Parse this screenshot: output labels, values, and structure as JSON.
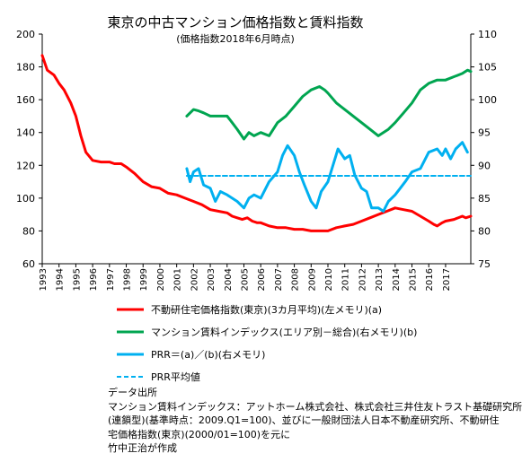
{
  "chart_data": {
    "type": "line",
    "title": "東京の中古マンション価格指数と賃料指数",
    "subtitle": "(価格指数2018年6月時点)",
    "xlabel": "",
    "ylabel_left": "",
    "ylabel_right": "",
    "x_tick_labels": [
      "1993",
      "1994",
      "1995",
      "1996",
      "1997",
      "1998",
      "1999",
      "2000",
      "2001",
      "2002",
      "2003",
      "2004",
      "2005",
      "2006",
      "2007",
      "2008",
      "2009",
      "2010",
      "2011",
      "2012",
      "2013",
      "2014",
      "2015",
      "2016",
      "2017"
    ],
    "ylim_left": [
      60,
      200
    ],
    "yticks_left": [
      60,
      80,
      100,
      120,
      140,
      160,
      180,
      200
    ],
    "ylim_right": [
      75,
      110
    ],
    "yticks_right": [
      75,
      80,
      85,
      90,
      95,
      100,
      105,
      110
    ],
    "xlim": [
      1993,
      2018.5
    ],
    "grid": false,
    "legend_position": "bottom",
    "series": [
      {
        "name": "不動研住宅価格指数(東京)(3カ月平均)(左メモリ)(a)",
        "axis": "left",
        "color": "#ff0000",
        "points": [
          [
            1993.0,
            187
          ],
          [
            1993.3,
            178
          ],
          [
            1993.7,
            175
          ],
          [
            1994.0,
            170
          ],
          [
            1994.3,
            166
          ],
          [
            1994.7,
            158
          ],
          [
            1995.0,
            150
          ],
          [
            1995.3,
            138
          ],
          [
            1995.6,
            128
          ],
          [
            1996.0,
            123
          ],
          [
            1996.5,
            122
          ],
          [
            1997.0,
            122
          ],
          [
            1997.3,
            121
          ],
          [
            1997.7,
            121
          ],
          [
            1998.0,
            119
          ],
          [
            1998.5,
            115
          ],
          [
            1999.0,
            110
          ],
          [
            1999.5,
            107
          ],
          [
            2000.0,
            106
          ],
          [
            2000.5,
            103
          ],
          [
            2001.0,
            102
          ],
          [
            2001.5,
            100
          ],
          [
            2002.0,
            98
          ],
          [
            2002.5,
            96
          ],
          [
            2003.0,
            93
          ],
          [
            2003.5,
            92
          ],
          [
            2004.0,
            91
          ],
          [
            2004.3,
            89
          ],
          [
            2004.6,
            88
          ],
          [
            2004.9,
            87
          ],
          [
            2005.2,
            88
          ],
          [
            2005.5,
            86
          ],
          [
            2005.8,
            85
          ],
          [
            2006.0,
            85
          ],
          [
            2006.5,
            83
          ],
          [
            2007.0,
            82
          ],
          [
            2007.5,
            82
          ],
          [
            2008.0,
            81
          ],
          [
            2008.5,
            81
          ],
          [
            2009.0,
            80
          ],
          [
            2009.5,
            80
          ],
          [
            2010.0,
            80
          ],
          [
            2010.5,
            82
          ],
          [
            2011.0,
            83
          ],
          [
            2011.5,
            84
          ],
          [
            2012.0,
            86
          ],
          [
            2012.5,
            88
          ],
          [
            2013.0,
            90
          ],
          [
            2013.5,
            92
          ],
          [
            2014.0,
            94
          ],
          [
            2014.5,
            93
          ],
          [
            2015.0,
            92
          ],
          [
            2015.5,
            89
          ],
          [
            2016.0,
            86
          ],
          [
            2016.3,
            84
          ],
          [
            2016.5,
            83
          ],
          [
            2016.8,
            85
          ],
          [
            2017.0,
            86
          ],
          [
            2017.5,
            87
          ],
          [
            2018.0,
            89
          ],
          [
            2018.2,
            88
          ],
          [
            2018.5,
            89
          ]
        ]
      },
      {
        "name": "マンション賃料インデックス(エリア別－総合)(右メモリ)(b)",
        "axis": "right",
        "color": "#00a550",
        "points": [
          [
            2001.6,
            97.5
          ],
          [
            2002.0,
            98.5
          ],
          [
            2002.3,
            98.3
          ],
          [
            2002.6,
            98.0
          ],
          [
            2003.0,
            97.5
          ],
          [
            2003.5,
            97.5
          ],
          [
            2004.0,
            97.5
          ],
          [
            2004.3,
            96.5
          ],
          [
            2004.6,
            95.5
          ],
          [
            2005.0,
            94.0
          ],
          [
            2005.3,
            95.0
          ],
          [
            2005.6,
            94.5
          ],
          [
            2006.0,
            95.0
          ],
          [
            2006.5,
            94.5
          ],
          [
            2007.0,
            96.5
          ],
          [
            2007.5,
            97.5
          ],
          [
            2008.0,
            99.0
          ],
          [
            2008.5,
            100.5
          ],
          [
            2009.0,
            101.5
          ],
          [
            2009.5,
            102.0
          ],
          [
            2009.8,
            101.5
          ],
          [
            2010.0,
            101.0
          ],
          [
            2010.5,
            99.5
          ],
          [
            2011.0,
            98.5
          ],
          [
            2011.5,
            97.5
          ],
          [
            2012.0,
            96.5
          ],
          [
            2012.5,
            95.5
          ],
          [
            2013.0,
            94.5
          ],
          [
            2013.3,
            95.0
          ],
          [
            2013.6,
            95.5
          ],
          [
            2014.0,
            96.5
          ],
          [
            2014.5,
            98.0
          ],
          [
            2015.0,
            99.5
          ],
          [
            2015.5,
            101.5
          ],
          [
            2016.0,
            102.5
          ],
          [
            2016.5,
            103.0
          ],
          [
            2017.0,
            103.0
          ],
          [
            2017.5,
            103.5
          ],
          [
            2018.0,
            104.0
          ],
          [
            2018.3,
            104.5
          ],
          [
            2018.5,
            104.3
          ]
        ]
      },
      {
        "name": "PRR＝(a)／(b)(右メモリ)",
        "axis": "right",
        "color": "#00b0f0",
        "points": [
          [
            2001.6,
            89.5
          ],
          [
            2001.8,
            87.5
          ],
          [
            2002.0,
            89.0
          ],
          [
            2002.3,
            89.5
          ],
          [
            2002.6,
            87.0
          ],
          [
            2003.0,
            86.5
          ],
          [
            2003.3,
            84.5
          ],
          [
            2003.6,
            86.0
          ],
          [
            2004.0,
            85.5
          ],
          [
            2004.3,
            85.0
          ],
          [
            2004.6,
            84.5
          ],
          [
            2005.0,
            83.5
          ],
          [
            2005.3,
            85.0
          ],
          [
            2005.6,
            85.5
          ],
          [
            2006.0,
            85.0
          ],
          [
            2006.5,
            87.5
          ],
          [
            2007.0,
            89.0
          ],
          [
            2007.3,
            91.5
          ],
          [
            2007.6,
            93.0
          ],
          [
            2008.0,
            91.5
          ],
          [
            2008.3,
            89.0
          ],
          [
            2008.6,
            87.0
          ],
          [
            2009.0,
            84.5
          ],
          [
            2009.3,
            83.5
          ],
          [
            2009.6,
            86.0
          ],
          [
            2010.0,
            87.5
          ],
          [
            2010.3,
            90.0
          ],
          [
            2010.6,
            92.5
          ],
          [
            2011.0,
            91.0
          ],
          [
            2011.3,
            91.5
          ],
          [
            2011.6,
            88.5
          ],
          [
            2012.0,
            86.5
          ],
          [
            2012.3,
            86.0
          ],
          [
            2012.6,
            83.5
          ],
          [
            2013.0,
            83.5
          ],
          [
            2013.3,
            83.0
          ],
          [
            2013.6,
            84.5
          ],
          [
            2014.0,
            85.5
          ],
          [
            2014.3,
            86.5
          ],
          [
            2014.6,
            87.5
          ],
          [
            2015.0,
            89.0
          ],
          [
            2015.5,
            89.5
          ],
          [
            2016.0,
            92.0
          ],
          [
            2016.5,
            92.5
          ],
          [
            2016.8,
            91.5
          ],
          [
            2017.0,
            92.5
          ],
          [
            2017.3,
            91.0
          ],
          [
            2017.6,
            92.5
          ],
          [
            2018.0,
            93.5
          ],
          [
            2018.3,
            92.0
          ]
        ]
      },
      {
        "name": "PRR平均値",
        "axis": "right",
        "color": "#00b0f0",
        "dashed": true,
        "points": [
          [
            2001.6,
            88.4
          ],
          [
            2018.5,
            88.4
          ]
        ]
      }
    ],
    "notes": [
      "データ出所",
      "マンション賃料インデックス：アットホーム株式会社、株式会社三井住友トラスト基礎研究所",
      "(連鎖型)(基準時点：2009.Q1=100)、並びに一般財団法人日本不動産研究所、不動研住",
      "宅価格指数(東京)(2000/01=100)を元に",
      "竹中正治が作成"
    ]
  }
}
